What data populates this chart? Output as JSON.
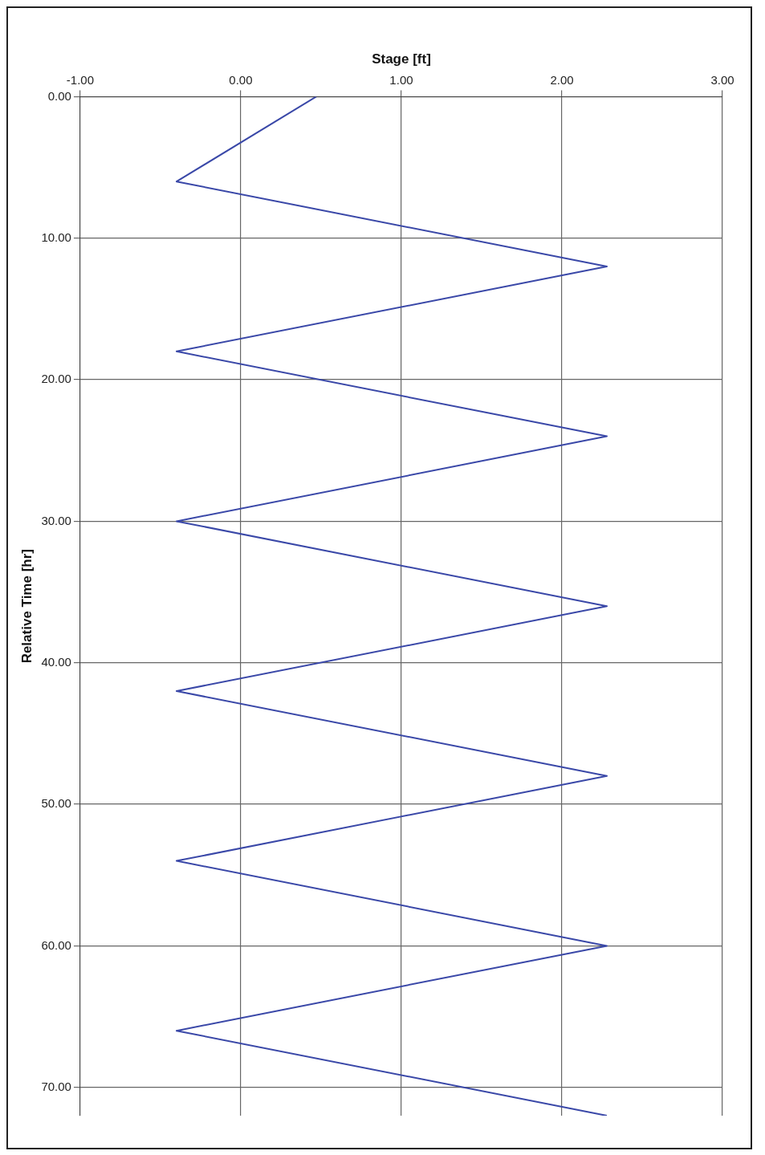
{
  "chart_data": {
    "type": "line",
    "xlabel": "Stage [ft]",
    "ylabel": "Relative Time [hr]",
    "x": [
      0.47,
      -0.4,
      2.28,
      -0.4,
      2.28,
      -0.4,
      2.28,
      -0.4,
      2.28,
      -0.4,
      2.28,
      -0.4,
      2.28
    ],
    "series": [
      {
        "color": "#3a48a8",
        "values": [
          0,
          6,
          12,
          18,
          24,
          30,
          36,
          42,
          48,
          54,
          60,
          66,
          72
        ]
      }
    ],
    "xlim": [
      -1,
      3
    ],
    "xticks": [
      {
        "value": -1,
        "label": "-1.00"
      },
      {
        "value": 0,
        "label": "0.00"
      },
      {
        "value": 1,
        "label": "1.00"
      },
      {
        "value": 2,
        "label": "2.00"
      },
      {
        "value": 3,
        "label": "3.00"
      }
    ],
    "ylim": [
      72,
      0
    ],
    "yticks": [
      {
        "value": 0,
        "label": "0.00"
      },
      {
        "value": 10,
        "label": "10.00"
      },
      {
        "value": 20,
        "label": "20.00"
      },
      {
        "value": 30,
        "label": "30.00"
      },
      {
        "value": 40,
        "label": "40.00"
      },
      {
        "value": 50,
        "label": "50.00"
      },
      {
        "value": 60,
        "label": "60.00"
      },
      {
        "value": 70,
        "label": "70.00"
      }
    ],
    "grid": true,
    "legend": false,
    "marker": "none",
    "line_style": "solid"
  }
}
